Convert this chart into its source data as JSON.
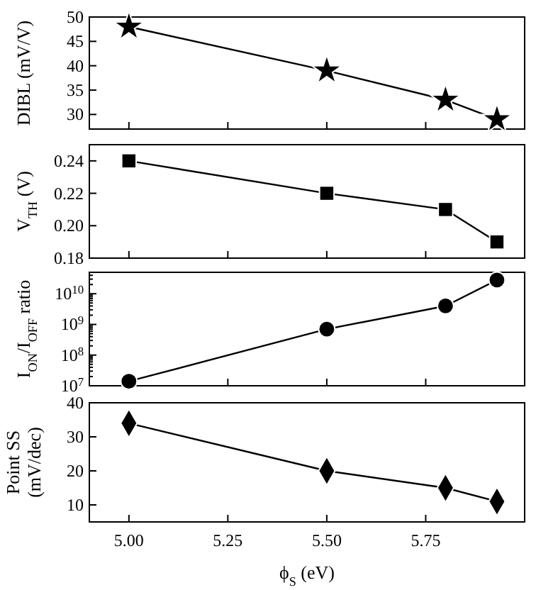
{
  "chart_data": [
    {
      "type": "line",
      "ylabel": "DIBL (mV/V)",
      "x": [
        5.0,
        5.5,
        5.8,
        5.93
      ],
      "xlim": [
        4.9,
        6.0
      ],
      "xticks": [
        5.0,
        5.25,
        5.5,
        5.75
      ],
      "ylim": [
        27,
        50
      ],
      "yticks": [
        30,
        35,
        40,
        45,
        50
      ],
      "tick_labels": "y",
      "marker": "star",
      "series": [
        {
          "color": "#000000",
          "values": [
            48,
            39,
            33,
            29
          ]
        }
      ]
    },
    {
      "type": "line",
      "ylabel": "V$_{TH}$ (V)",
      "x": [
        5.0,
        5.5,
        5.8,
        5.93
      ],
      "xlim": [
        4.9,
        6.0
      ],
      "xticks": [
        5.0,
        5.25,
        5.5,
        5.75
      ],
      "ylim": [
        0.18,
        0.25
      ],
      "yticks": [
        {
          "value": 0.18,
          "label": "0.18"
        },
        {
          "value": 0.2,
          "label": "0.20"
        },
        {
          "value": 0.22,
          "label": "0.22"
        },
        {
          "value": 0.24,
          "label": "0.24"
        }
      ],
      "tick_labels": "y",
      "marker": "square",
      "series": [
        {
          "color": "#000000",
          "values": [
            0.24,
            0.22,
            0.21,
            0.19
          ]
        }
      ]
    },
    {
      "type": "line",
      "ylabel": "I$_{ON}$/I$_{OFF}$ ratio",
      "x": [
        5.0,
        5.5,
        5.8,
        5.93
      ],
      "xlim": [
        4.9,
        6.0
      ],
      "xticks": [
        5.0,
        5.25,
        5.5,
        5.75
      ],
      "log": "y",
      "ylim": [
        10000000,
        50000000000
      ],
      "yticks": [
        {
          "value": 10000000,
          "label": "10$^{7}$"
        },
        {
          "value": 100000000,
          "label": "10$^{8}$"
        },
        {
          "value": 1000000000,
          "label": "10$^{9}$"
        },
        {
          "value": 10000000000,
          "label": "10$^{10}$"
        }
      ],
      "tick_labels": "y",
      "marker": "circle",
      "series": [
        {
          "color": "#000000",
          "values": [
            14000000,
            700000000,
            4000000000,
            28000000000
          ]
        }
      ]
    },
    {
      "type": "line",
      "ylabel": "Point SS (mV/dec)",
      "xlabel": "ϕ$_{S}$ (eV)",
      "x": [
        5.0,
        5.5,
        5.8,
        5.93
      ],
      "xlim": [
        4.9,
        6.0
      ],
      "xticks": [
        {
          "value": 5.0,
          "label": "5.00"
        },
        {
          "value": 5.25,
          "label": "5.25"
        },
        {
          "value": 5.5,
          "label": "5.50"
        },
        {
          "value": 5.75,
          "label": "5.75"
        }
      ],
      "ylim": [
        5,
        40
      ],
      "yticks": [
        10,
        20,
        30,
        40
      ],
      "marker": "diamond",
      "series": [
        {
          "color": "#000000",
          "values": [
            34,
            20,
            15,
            11
          ]
        }
      ]
    }
  ]
}
